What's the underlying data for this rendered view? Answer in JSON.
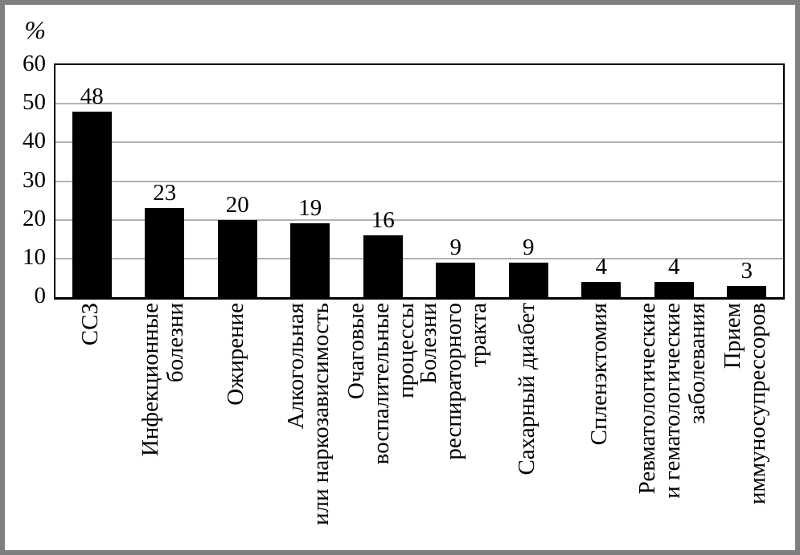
{
  "chart_data": {
    "type": "bar",
    "title": "",
    "xlabel": "",
    "ylabel": "%",
    "ylim": [
      0,
      60
    ],
    "yticks": [
      0,
      10,
      20,
      30,
      40,
      50,
      60
    ],
    "grid": true,
    "legend": false,
    "bar_color": "#000000",
    "gridline_color": "#b3b3b3",
    "frame_color": "#7f7f7f",
    "categories": [
      "ССЗ",
      "Инфекционные болезни",
      "Ожирение",
      "Алкогольная или наркозависимость",
      "Очаговые воспалительные процессы",
      "Болезни респираторного тракта",
      "Сахарный диабет",
      "Спленэктомия",
      "Ревматологические и гематологические заболевания",
      "Прием иммуносупрессоров"
    ],
    "category_lines": [
      [
        "ССЗ"
      ],
      [
        "Инфекционные",
        "болезни"
      ],
      [
        "Ожирение"
      ],
      [
        "Алкогольная",
        "или наркозависимость"
      ],
      [
        "Очаговые",
        "воспалительные",
        "процессы"
      ],
      [
        "Болезни",
        "респираторного",
        "тракта"
      ],
      [
        "Сахарный диабет"
      ],
      [
        "Спленэктомия"
      ],
      [
        "Ревматологические",
        "и гематологические",
        "заболевания"
      ],
      [
        "Прием",
        "иммуносупрессоров"
      ]
    ],
    "values": [
      48,
      23,
      20,
      19,
      16,
      9,
      9,
      4,
      4,
      3
    ]
  }
}
